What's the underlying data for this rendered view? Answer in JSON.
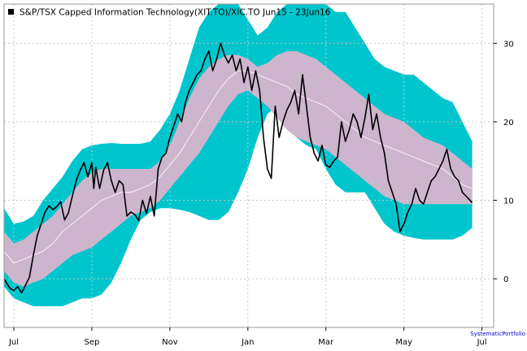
{
  "chart_data": {
    "type": "line",
    "title": "S&P/TSX Capped Information Technology(XIT.TO)/XIC.TO Jun15 - 23Jun16",
    "credit": "SystematicPortfolio",
    "x_tick_labels": [
      "Jul",
      "Sep",
      "Nov",
      "Jan",
      "Mar",
      "May",
      "Jul"
    ],
    "x_tick_months": [
      1,
      3,
      5,
      7,
      9,
      11,
      13
    ],
    "x_range_months": [
      0.75,
      13.3
    ],
    "y_ticks": [
      0,
      10,
      20,
      30
    ],
    "ylim": [
      -6.2,
      35
    ],
    "grid": true,
    "legend_position": "top-left",
    "colors": {
      "outer_band": "#00c5cd",
      "inner_band": "#cdb5cd",
      "mid_line": "#ffffff",
      "price_line": "#000000",
      "grid": "#c8c8c8",
      "frame": "#999999"
    },
    "x": [
      0.75,
      1.0,
      1.25,
      1.5,
      1.75,
      2.0,
      2.25,
      2.5,
      2.75,
      3.0,
      3.25,
      3.5,
      3.75,
      4.0,
      4.25,
      4.5,
      4.75,
      5.0,
      5.25,
      5.5,
      5.75,
      6.0,
      6.25,
      6.5,
      6.75,
      7.0,
      7.25,
      7.5,
      7.75,
      8.0,
      8.25,
      8.5,
      8.75,
      9.0,
      9.25,
      9.5,
      9.75,
      10.0,
      10.25,
      10.5,
      10.75,
      11.0,
      11.25,
      11.5,
      11.75,
      12.0,
      12.25,
      12.5,
      12.75
    ],
    "series": [
      {
        "role": "upper_outer",
        "values": [
          9,
          7,
          7.3,
          8,
          10,
          11.5,
          13,
          15,
          16.5,
          17,
          17.2,
          17.3,
          17.2,
          17.2,
          17.2,
          17.5,
          19,
          21,
          24,
          28,
          32,
          34,
          35,
          35,
          35,
          33,
          31,
          32,
          34,
          35,
          35,
          35,
          35,
          35,
          34,
          34,
          32,
          30,
          28,
          27,
          26.5,
          26,
          26,
          25,
          24,
          23,
          22.5,
          20,
          17.5
        ]
      },
      {
        "role": "upper_inner",
        "values": [
          6,
          4.5,
          5,
          6,
          7,
          8,
          9.5,
          11,
          12.5,
          13.5,
          14,
          14,
          14,
          14,
          14,
          14,
          15,
          17,
          20,
          23,
          25.5,
          27,
          28,
          28.5,
          28.5,
          28,
          27,
          27.5,
          28.5,
          29,
          29,
          28.5,
          28,
          27,
          26,
          25,
          24,
          23,
          22,
          21,
          20.5,
          20,
          19,
          18,
          17.5,
          17,
          16,
          15,
          14
        ]
      },
      {
        "role": "middle",
        "values": [
          3.5,
          2,
          2.5,
          3,
          3.5,
          4.5,
          6,
          7,
          8,
          9,
          10,
          10.5,
          11,
          11,
          11.5,
          12,
          13,
          14.5,
          16,
          18,
          20,
          22,
          24,
          25.5,
          26.5,
          26.5,
          26,
          25.5,
          25,
          24.5,
          23.5,
          23,
          22.5,
          22,
          21,
          20,
          19,
          18,
          17.5,
          17,
          16.5,
          16,
          15.5,
          15,
          14.5,
          14,
          13,
          12,
          11.5
        ]
      },
      {
        "role": "lower_inner",
        "values": [
          1,
          -0.5,
          -1,
          -0.5,
          0,
          1,
          2,
          3,
          3.5,
          4,
          5,
          6,
          7,
          8,
          8.5,
          9,
          10,
          11.5,
          13,
          14.5,
          16,
          18,
          20,
          22,
          23.5,
          24,
          23,
          22,
          20.5,
          19,
          18,
          17.5,
          17,
          16.5,
          15.5,
          14.5,
          13.5,
          12.5,
          11.5,
          10.5,
          10,
          9.5,
          9.5,
          9.5,
          9.5,
          9.5,
          9.5,
          9.5,
          9.5
        ]
      },
      {
        "role": "lower_outer",
        "values": [
          -1,
          -2.5,
          -3,
          -3.5,
          -3.5,
          -3.5,
          -3.5,
          -3,
          -2.5,
          -2.5,
          -2,
          -0.5,
          2,
          5,
          7.5,
          8.5,
          9,
          9,
          8.8,
          8.5,
          8,
          7.5,
          7.5,
          8.5,
          11,
          14,
          18,
          21,
          22,
          20.5,
          18,
          17,
          16.5,
          14,
          12,
          11,
          11,
          11,
          9,
          7,
          6,
          5.5,
          5.2,
          5,
          5,
          5,
          5,
          5.5,
          6.5
        ]
      }
    ],
    "price": {
      "name": "XIT.TO/XIC.TO",
      "x": [
        0.75,
        0.82,
        0.9,
        1.0,
        1.1,
        1.2,
        1.3,
        1.4,
        1.5,
        1.6,
        1.7,
        1.8,
        1.9,
        2.0,
        2.1,
        2.2,
        2.3,
        2.4,
        2.5,
        2.6,
        2.7,
        2.8,
        2.9,
        3.0,
        3.05,
        3.1,
        3.2,
        3.3,
        3.4,
        3.5,
        3.6,
        3.7,
        3.8,
        3.9,
        4.0,
        4.1,
        4.2,
        4.3,
        4.4,
        4.5,
        4.6,
        4.7,
        4.8,
        4.9,
        5.0,
        5.1,
        5.2,
        5.3,
        5.4,
        5.5,
        5.6,
        5.7,
        5.8,
        5.9,
        6.0,
        6.1,
        6.2,
        6.3,
        6.4,
        6.5,
        6.6,
        6.7,
        6.8,
        6.9,
        7.0,
        7.1,
        7.2,
        7.3,
        7.4,
        7.5,
        7.6,
        7.7,
        7.8,
        7.9,
        8.0,
        8.1,
        8.2,
        8.3,
        8.4,
        8.5,
        8.6,
        8.7,
        8.8,
        8.9,
        9.0,
        9.1,
        9.2,
        9.3,
        9.4,
        9.5,
        9.6,
        9.7,
        9.8,
        9.9,
        10.0,
        10.1,
        10.2,
        10.3,
        10.4,
        10.5,
        10.6,
        10.7,
        10.8,
        10.9,
        11.0,
        11.1,
        11.2,
        11.3,
        11.4,
        11.5,
        11.6,
        11.7,
        11.8,
        11.9,
        12.0,
        12.1,
        12.2,
        12.3,
        12.4,
        12.5,
        12.6,
        12.75
      ],
      "values": [
        0,
        -0.6,
        -1.2,
        -1.5,
        -1.0,
        -1.8,
        -0.8,
        0.2,
        3,
        5.5,
        7,
        8.5,
        9.3,
        8.8,
        9.2,
        9.8,
        7.5,
        8.4,
        10.5,
        12.5,
        13.8,
        14.8,
        13,
        14.8,
        11.5,
        14.2,
        11.5,
        13.8,
        14.8,
        12.5,
        11,
        12.5,
        12,
        8,
        8.5,
        8.2,
        7.4,
        10,
        8.3,
        10.5,
        8,
        14,
        15.5,
        16,
        18,
        19.5,
        21,
        20,
        22.5,
        24,
        25,
        26,
        26.5,
        28,
        29,
        26.5,
        28,
        30,
        28.5,
        27.5,
        28.5,
        26.5,
        28,
        25,
        27,
        24,
        26.5,
        24,
        18,
        14,
        12.8,
        22,
        18,
        20,
        21.5,
        22.5,
        24,
        21,
        26,
        22,
        18,
        16,
        15,
        17,
        14.5,
        14.2,
        15,
        15.5,
        20,
        17.5,
        19,
        21,
        20,
        18,
        20.5,
        23.5,
        19,
        21,
        18,
        16,
        12.5,
        11,
        9.5,
        6,
        7,
        8.5,
        9.5,
        11.5,
        10,
        9.5,
        11,
        12.5,
        13,
        14,
        15,
        16.5,
        14,
        13,
        12.5,
        11,
        10.5,
        9.7
      ]
    }
  }
}
